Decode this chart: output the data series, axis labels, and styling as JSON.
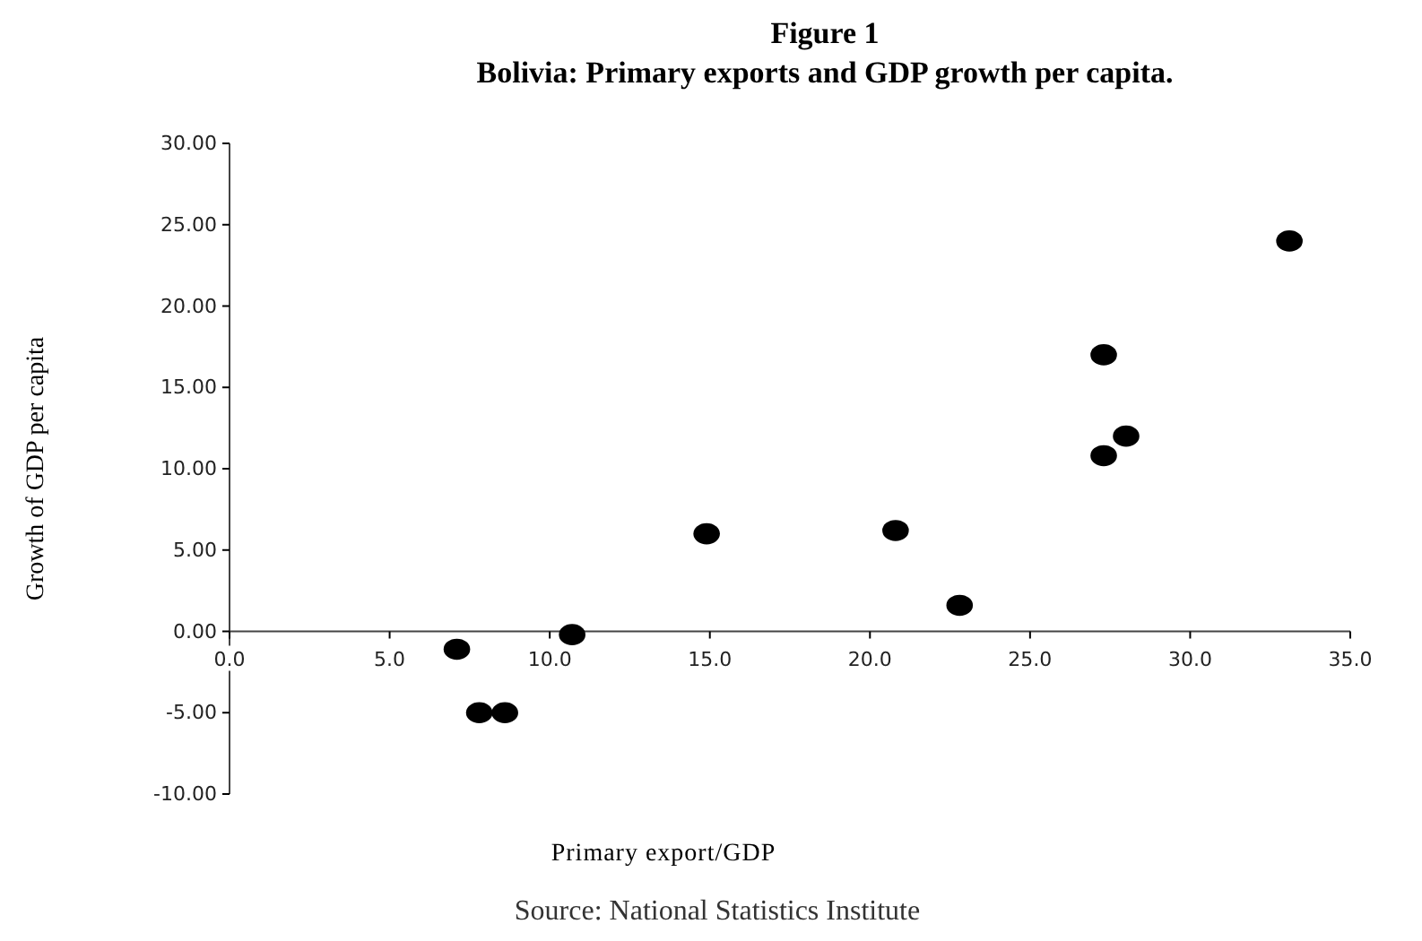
{
  "chart_data": {
    "type": "scatter",
    "title": "Figure 1",
    "subtitle": "Bolivia: Primary exports and GDP growth per capita.",
    "xlabel": "Primary export/GDP",
    "ylabel": "Growth of GDP per capita",
    "annotations": [
      "Source: National Statistics Institute"
    ],
    "series": [
      {
        "color": "#000000",
        "x": [
          7.1,
          7.8,
          8.6,
          10.7,
          14.9,
          20.8,
          22.8,
          27.3,
          27.3,
          28.0,
          33.1
        ],
        "values": [
          -1.1,
          -5.0,
          -5.0,
          -0.2,
          6.0,
          6.2,
          1.6,
          10.8,
          17.0,
          12.0,
          24.0
        ]
      }
    ],
    "marker": "circle",
    "xlim": [
      0,
      35
    ],
    "xticks": [
      {
        "value": 0,
        "label": "0.0"
      },
      {
        "value": 5,
        "label": "5.0"
      },
      {
        "value": 10,
        "label": "10.0"
      },
      {
        "value": 15,
        "label": "15.0"
      },
      {
        "value": 20,
        "label": "20.0"
      },
      {
        "value": 25,
        "label": "25.0"
      },
      {
        "value": 30,
        "label": "30.0"
      },
      {
        "value": 35,
        "label": "35.0"
      }
    ],
    "ylim": [
      -10,
      30
    ],
    "yticks": [
      {
        "value": -10,
        "label": "-10.00"
      },
      {
        "value": -5,
        "label": "-5.00"
      },
      {
        "value": 0,
        "label": "0.00"
      },
      {
        "value": 5,
        "label": "5.00"
      },
      {
        "value": 10,
        "label": "10.00"
      },
      {
        "value": 15,
        "label": "15.00"
      },
      {
        "value": 20,
        "label": "20.00"
      },
      {
        "value": 25,
        "label": "25.00"
      },
      {
        "value": 30,
        "label": "30.00"
      }
    ]
  }
}
